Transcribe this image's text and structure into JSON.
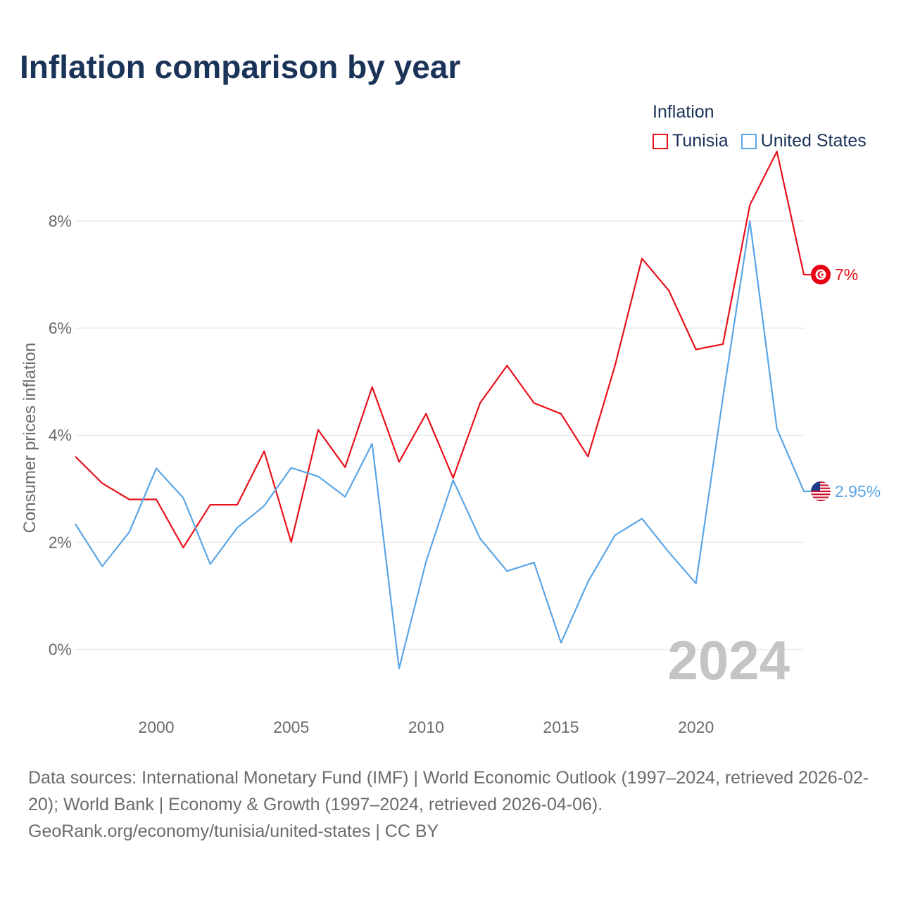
{
  "title": "Inflation comparison by year",
  "legend": {
    "title": "Inflation",
    "items": [
      {
        "name": "Tunisia",
        "color": "#e8111b"
      },
      {
        "name": "United States",
        "color": "#5aa5e6"
      }
    ]
  },
  "watermark_year": "2024",
  "footer": {
    "line1": "Data sources: International Monetary Fund (IMF) | World Economic Outlook (1997–2024, retrieved 2026-02-20); World Bank | Economy & Growth (1997–2024, retrieved 2026-04-06).",
    "line2": "GeoRank.org/economy/tunisia/united-states | CC BY"
  },
  "chart_data": {
    "type": "line",
    "title": "Inflation comparison by year",
    "xlabel": "",
    "ylabel": "Consumer prices inflation",
    "x": [
      1997,
      1998,
      1999,
      2000,
      2001,
      2002,
      2003,
      2004,
      2005,
      2006,
      2007,
      2008,
      2009,
      2010,
      2011,
      2012,
      2013,
      2014,
      2015,
      2016,
      2017,
      2018,
      2019,
      2020,
      2021,
      2022,
      2023,
      2024
    ],
    "xlim": [
      1997,
      2024
    ],
    "ylim": [
      -1.1,
      9.5
    ],
    "x_ticks": [
      2000,
      2005,
      2010,
      2015,
      2020
    ],
    "y_ticks": [
      0,
      2,
      4,
      6,
      8
    ],
    "y_tick_labels": [
      "0%",
      "2%",
      "4%",
      "6%",
      "8%"
    ],
    "series": [
      {
        "name": "Tunisia",
        "color": "#e8111b",
        "end_label": "7%",
        "values": [
          3.6,
          3.1,
          2.8,
          2.8,
          1.9,
          2.7,
          2.7,
          3.7,
          2.0,
          4.1,
          3.4,
          4.9,
          3.5,
          4.4,
          3.2,
          4.6,
          5.3,
          4.6,
          4.4,
          3.6,
          5.3,
          7.3,
          6.7,
          5.6,
          5.7,
          8.3,
          9.3,
          7.0
        ]
      },
      {
        "name": "United States",
        "color": "#5aa5e6",
        "end_label": "2.95%",
        "values": [
          2.34,
          1.55,
          2.19,
          3.38,
          2.83,
          1.59,
          2.27,
          2.68,
          3.39,
          3.23,
          2.85,
          3.84,
          -0.36,
          1.64,
          3.16,
          2.07,
          1.46,
          1.62,
          0.12,
          1.26,
          2.13,
          2.44,
          1.81,
          1.23,
          4.7,
          8.0,
          4.12,
          2.95
        ]
      }
    ]
  }
}
